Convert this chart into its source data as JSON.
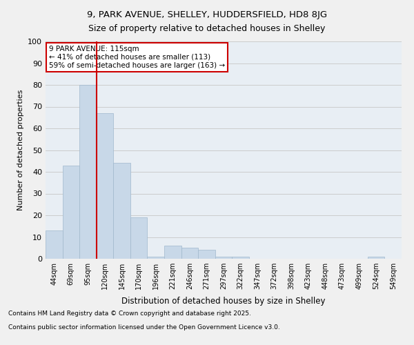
{
  "title1": "9, PARK AVENUE, SHELLEY, HUDDERSFIELD, HD8 8JG",
  "title2": "Size of property relative to detached houses in Shelley",
  "xlabel": "Distribution of detached houses by size in Shelley",
  "ylabel": "Number of detached properties",
  "categories": [
    "44sqm",
    "69sqm",
    "95sqm",
    "120sqm",
    "145sqm",
    "170sqm",
    "196sqm",
    "221sqm",
    "246sqm",
    "271sqm",
    "297sqm",
    "322sqm",
    "347sqm",
    "372sqm",
    "398sqm",
    "423sqm",
    "448sqm",
    "473sqm",
    "499sqm",
    "524sqm",
    "549sqm"
  ],
  "values": [
    13,
    43,
    80,
    67,
    44,
    19,
    1,
    6,
    5,
    4,
    1,
    1,
    0,
    0,
    0,
    0,
    0,
    0,
    0,
    1,
    0
  ],
  "bar_color": "#c8d8e8",
  "bar_edge_color": "#a0b8cc",
  "vline_index": 3,
  "vline_color": "#cc0000",
  "annotation_line1": "9 PARK AVENUE: 115sqm",
  "annotation_line2": "← 41% of detached houses are smaller (113)",
  "annotation_line3": "59% of semi-detached houses are larger (163) →",
  "annotation_box_color": "#ffffff",
  "annotation_box_edge": "#cc0000",
  "ylim": [
    0,
    100
  ],
  "yticks": [
    0,
    10,
    20,
    30,
    40,
    50,
    60,
    70,
    80,
    90,
    100
  ],
  "grid_color": "#cccccc",
  "bg_color": "#e8eef4",
  "fig_bg_color": "#f0f0f0",
  "footer1": "Contains HM Land Registry data © Crown copyright and database right 2025.",
  "footer2": "Contains public sector information licensed under the Open Government Licence v3.0."
}
